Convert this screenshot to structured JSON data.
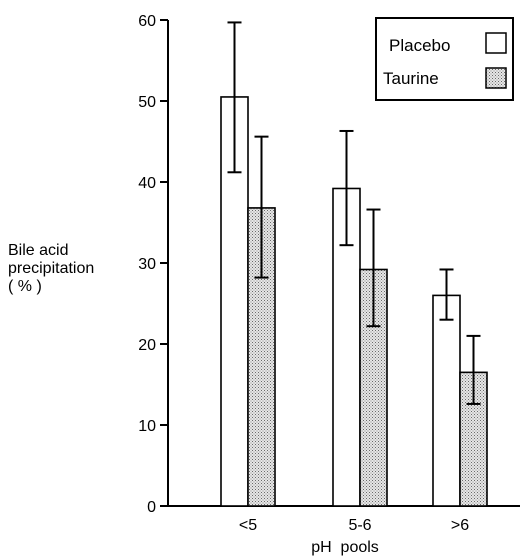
{
  "chart_data": {
    "type": "bar",
    "categories": [
      "<5",
      "5-6",
      ">6"
    ],
    "series": [
      {
        "name": "Placebo",
        "values": [
          50.5,
          39.2,
          26.0
        ],
        "err_low": [
          41.2,
          32.2,
          23.0
        ],
        "err_high": [
          59.7,
          46.3,
          29.2
        ],
        "fill": "#ffffff"
      },
      {
        "name": "Taurine",
        "values": [
          36.8,
          29.2,
          16.5
        ],
        "err_low": [
          28.2,
          22.2,
          12.6
        ],
        "err_high": [
          45.6,
          36.6,
          21.0
        ],
        "fill": "#d8d8d8"
      }
    ],
    "title": "",
    "xlabel": "pH  pools",
    "ylabel_lines": [
      "Bile acid",
      "precipitation",
      "( % )"
    ],
    "ylim": [
      0,
      60
    ],
    "yticks": [
      0,
      10,
      20,
      30,
      40,
      50,
      60
    ],
    "grid": false,
    "legend": "top-right"
  }
}
